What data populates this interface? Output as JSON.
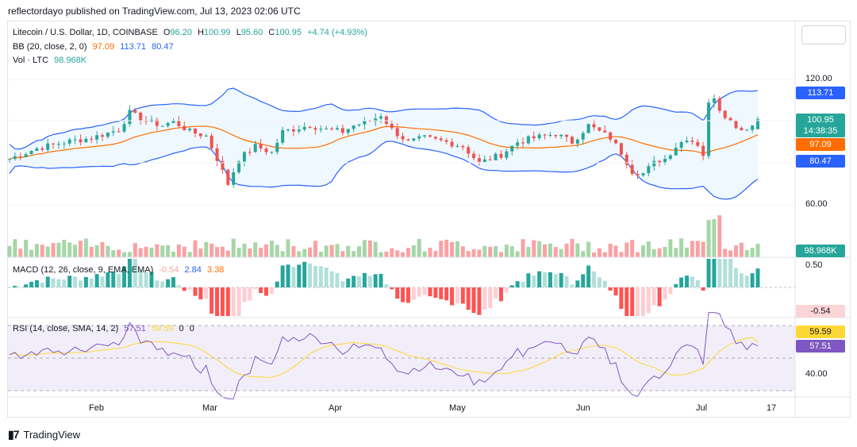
{
  "publisher": "reflectordayo published on TradingView.com, Jul 13, 2023 02:06 UTC",
  "brand": "TradingView",
  "legend": {
    "symbol": "Litecoin / U.S. Dollar, 1D, COINBASE",
    "o_label": "O",
    "o": "96.20",
    "h_label": "H",
    "h": "100.99",
    "l_label": "L",
    "l": "95.60",
    "c_label": "C",
    "c": "100.95",
    "change": "+4.74 (+4.93%)",
    "bb_label": "BB (20, close, 2, 0)",
    "bb_basis": "97.09",
    "bb_upper": "113.71",
    "bb_lower": "80.47",
    "vol_label": "Vol · LTC",
    "vol": "98.968K",
    "macd_label": "MACD (12, 26, close, 9, EMA, EMA)",
    "macd_hist": "-0.54",
    "macd_line": "2.84",
    "macd_signal": "3.38",
    "rsi_label": "RSI (14, close, SMA, 14, 2)",
    "rsi": "57.51",
    "rsi_ma": "59.59",
    "rsi_x": "0",
    "rsi_y": "0"
  },
  "axis": {
    "price_ticks": [
      "120.00",
      "60.00"
    ],
    "macd_ticks": [
      "0.50"
    ],
    "rsi_ticks": [
      "40.00"
    ],
    "x_ticks": [
      "Feb",
      "Mar",
      "Apr",
      "May",
      "Jun",
      "Jul",
      "17"
    ]
  },
  "price_labels": {
    "upper": "113.71",
    "last": "100.95",
    "countdown": "14:38:35",
    "basis": "97.09",
    "lower": "80.47",
    "volume": "98.968K",
    "macd": "-0.54",
    "rsi_ma": "59.59",
    "rsi": "57.51"
  },
  "colors": {
    "up": "#26a69a",
    "down": "#ef5350",
    "bb_band": "#2962ff",
    "bb_basis": "#ff6d00",
    "rsi": "#7e57c2",
    "rsi_ma": "#fdd835",
    "vol_up": "#a5d6a7",
    "vol_down": "#faa1a4"
  },
  "chart_data": {
    "type": "candlestick",
    "symbol": "LTC/USD",
    "timeframe": "1D",
    "x_ticks": [
      "Feb",
      "Mar",
      "Apr",
      "May",
      "Jun",
      "Jul",
      "17"
    ],
    "price_range": [
      50,
      130
    ],
    "last_candle": {
      "open": 96.2,
      "high": 100.99,
      "low": 95.6,
      "close": 100.95
    },
    "close_path": [
      [
        0,
        82
      ],
      [
        5,
        87
      ],
      [
        10,
        90
      ],
      [
        15,
        92
      ],
      [
        20,
        96
      ],
      [
        22,
        104
      ],
      [
        25,
        100
      ],
      [
        28,
        98
      ],
      [
        30,
        100
      ],
      [
        33,
        95
      ],
      [
        36,
        93
      ],
      [
        38,
        82
      ],
      [
        40,
        70
      ],
      [
        42,
        82
      ],
      [
        45,
        88
      ],
      [
        48,
        85
      ],
      [
        50,
        95
      ],
      [
        55,
        98
      ],
      [
        58,
        96
      ],
      [
        61,
        95
      ],
      [
        63,
        98
      ],
      [
        66,
        100
      ],
      [
        68,
        103
      ],
      [
        70,
        96
      ],
      [
        73,
        90
      ],
      [
        76,
        92
      ],
      [
        80,
        90
      ],
      [
        83,
        88
      ],
      [
        86,
        80
      ],
      [
        88,
        82
      ],
      [
        90,
        84
      ],
      [
        93,
        90
      ],
      [
        96,
        92
      ],
      [
        100,
        94
      ],
      [
        103,
        90
      ],
      [
        106,
        98
      ],
      [
        108,
        95
      ],
      [
        110,
        92
      ],
      [
        112,
        85
      ],
      [
        114,
        76
      ],
      [
        116,
        75
      ],
      [
        118,
        80
      ],
      [
        120,
        82
      ],
      [
        122,
        88
      ],
      [
        124,
        92
      ],
      [
        126,
        89
      ],
      [
        127,
        84
      ],
      [
        128,
        108
      ],
      [
        129,
        112
      ],
      [
        130,
        106
      ],
      [
        132,
        100
      ],
      [
        134,
        96
      ],
      [
        136,
        98
      ],
      [
        137,
        100.95
      ]
    ],
    "bollinger": {
      "basis_last": 97.09,
      "upper_last": 113.71,
      "lower_last": 80.47
    },
    "volume_last": "98.968K",
    "macd_last": {
      "histogram": -0.54,
      "macd": 2.84,
      "signal": 3.38
    },
    "rsi_last": {
      "rsi": 57.51,
      "ma": 59.59
    },
    "rsi_range": [
      30,
      75
    ]
  }
}
